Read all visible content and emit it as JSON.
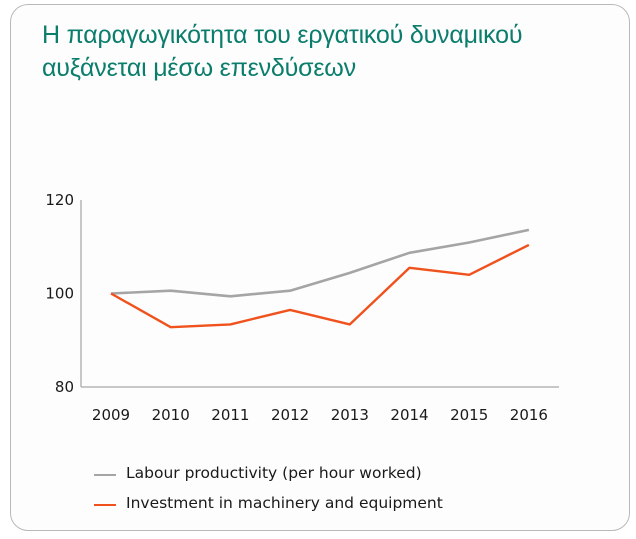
{
  "title": {
    "line1": "Η παραγωγικότητα του εργατικού δυναμικού",
    "line2": "αυξάνεται μέσω επενδύσεων"
  },
  "colors": {
    "title": "#0b7d6c",
    "axis": "#b5b5b5",
    "labour": "#a5a5a5",
    "investment": "#f0521e"
  },
  "chart_data": {
    "type": "line",
    "title": "Η παραγωγικότητα του εργατικού δυναμικού αυξάνεται μέσω επενδύσεων",
    "xlabel": "",
    "ylabel": "",
    "categories": [
      "2009",
      "2010",
      "2011",
      "2012",
      "2013",
      "2014",
      "2015",
      "2016"
    ],
    "ylim": [
      80,
      120
    ],
    "yticks": [
      "80",
      "100",
      "120"
    ],
    "grid": false,
    "legend_position": "bottom",
    "series": [
      {
        "name": "Labour productivity (per hour worked)",
        "color": "#a5a5a5",
        "values": [
          100,
          100.6,
          99.4,
          100.6,
          104.4,
          108.7,
          110.9,
          113.6
        ]
      },
      {
        "name": "Investment in machinery and equipment",
        "color": "#f0521e",
        "values": [
          100,
          92.8,
          93.4,
          96.5,
          93.4,
          105.5,
          104.0,
          110.4
        ]
      }
    ]
  }
}
